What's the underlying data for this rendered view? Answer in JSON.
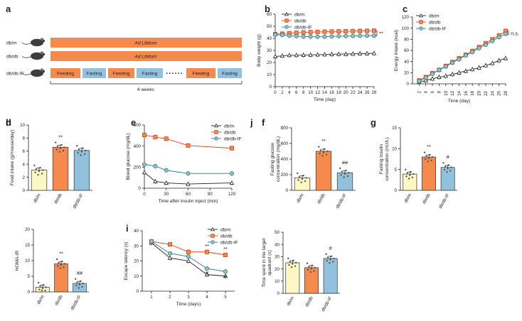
{
  "colors": {
    "dbm": "#fdf7c3",
    "dbdb": "#f58a4c",
    "dbdbif": "#92c1dd",
    "orange_bar": "#f58a4c",
    "blue_bar": "#92c1dd",
    "dbm_line": "#222222",
    "dbdb_line": "#d9441f",
    "dbdbif_line": "#2e7f6d"
  },
  "panel_a": {
    "label": "a",
    "rows": [
      {
        "group": "db/m",
        "bar_text": "Ad Libitum"
      },
      {
        "group": "db/db",
        "bar_text": "Ad Libitum"
      },
      {
        "group": "db/db-IF",
        "segments": [
          "Feeding",
          "Fasting",
          "Feeding",
          "Fasting",
          "Feeding",
          "Fasting"
        ],
        "dots": "• • • • • •"
      }
    ],
    "duration": "4 weeks",
    "mouse_icon": "mouse-icon"
  },
  "legend3": [
    "db/m",
    "db/db",
    "db/db-IF"
  ],
  "chart_data": [
    {
      "id": "b",
      "type": "line",
      "title": "",
      "xlabel": "Time (day)",
      "ylabel": "Body weight (g)",
      "x": [
        0,
        2,
        4,
        6,
        8,
        10,
        12,
        14,
        16,
        18,
        20,
        22,
        24,
        26,
        28
      ],
      "xticks": [
        "0",
        "2",
        "4",
        "6",
        "8",
        "10",
        "12",
        "14",
        "16",
        "18",
        "20",
        "22",
        "24",
        "26",
        "28"
      ],
      "ylim": [
        0,
        60
      ],
      "yticks": [
        "0",
        "10",
        "20",
        "30",
        "40",
        "50",
        "60"
      ],
      "series": [
        {
          "name": "db/m",
          "values": [
            25,
            25.5,
            26,
            26,
            26.2,
            26.3,
            26.5,
            26.6,
            26.8,
            27,
            27,
            27.2,
            27.4,
            27.5,
            27.6
          ]
        },
        {
          "name": "db/db",
          "values": [
            43.5,
            43.8,
            44.2,
            44.6,
            44.9,
            45.1,
            45.3,
            45.5,
            45.7,
            45.8,
            45.9,
            46,
            46.1,
            46.2,
            46.3
          ]
        },
        {
          "name": "db/db-IF",
          "values": [
            43,
            42.8,
            42.2,
            41.8,
            41.5,
            41.4,
            41.3,
            41.4,
            41.6,
            41.8,
            41.9,
            42,
            42.1,
            42.2,
            42.3
          ]
        }
      ],
      "annotation": "**"
    },
    {
      "id": "c",
      "type": "line",
      "title": "",
      "xlabel": "Time (day)",
      "ylabel": "Energy intake (kcal)",
      "x": [
        2,
        4,
        6,
        8,
        10,
        12,
        14,
        16,
        18,
        20,
        22,
        24,
        26,
        28
      ],
      "xticks": [
        "2",
        "4",
        "6",
        "8",
        "10",
        "12",
        "14",
        "16",
        "18",
        "20",
        "22",
        "24",
        "26",
        "28"
      ],
      "ylim": [
        0,
        120
      ],
      "yticks": [
        "0",
        "20",
        "40",
        "60",
        "80",
        "100",
        "120"
      ],
      "series": [
        {
          "name": "db/m",
          "values": [
            3,
            6,
            9,
            12,
            14,
            17,
            20,
            23,
            26,
            29,
            33,
            37,
            42,
            46
          ]
        },
        {
          "name": "db/db",
          "values": [
            6,
            12,
            19,
            25,
            32,
            39,
            46,
            52,
            59,
            66,
            73,
            80,
            87,
            95
          ]
        },
        {
          "name": "db/db-IF",
          "values": [
            5,
            11,
            18,
            25,
            31,
            38,
            44,
            51,
            57,
            64,
            70,
            77,
            84,
            90
          ]
        }
      ],
      "annotation": "n.s."
    },
    {
      "id": "d",
      "type": "bar",
      "title": "",
      "xlabel": "",
      "ylabel": "Food intake (g/mouse/day)",
      "categories": [
        "db/m",
        "db/db",
        "db/db-IF"
      ],
      "values": [
        3.1,
        6.6,
        6.1
      ],
      "ylim": [
        0,
        10
      ],
      "yticks": [
        "0",
        "2",
        "4",
        "6",
        "8",
        "10"
      ],
      "significance": [
        "",
        "**",
        ""
      ]
    },
    {
      "id": "e",
      "type": "line",
      "title": "",
      "xlabel": "Time after insulin inject (min)",
      "ylabel": "Blood glucose (mg/dL)",
      "x": [
        0,
        15,
        30,
        60,
        120
      ],
      "xticks": [
        "0",
        "30",
        "60",
        "90",
        "120"
      ],
      "xlim": [
        0,
        120
      ],
      "ylim": [
        0,
        600
      ],
      "yticks": [
        "0",
        "200",
        "400",
        "600"
      ],
      "series": [
        {
          "name": "db/m",
          "values": [
            150,
            65,
            50,
            40,
            50
          ]
        },
        {
          "name": "db/db",
          "values": [
            505,
            485,
            470,
            405,
            380
          ]
        },
        {
          "name": "db/db-IF",
          "values": [
            225,
            210,
            170,
            140,
            140
          ]
        }
      ]
    },
    {
      "id": "f",
      "type": "bar",
      "title": "",
      "xlabel": "",
      "ylabel": "Fasting glucose concentration (mg/dL)",
      "categories": [
        "db/m",
        "db/db",
        "db/db-IF"
      ],
      "values": [
        160,
        500,
        225
      ],
      "ylim": [
        0,
        800
      ],
      "yticks": [
        "0",
        "200",
        "400",
        "600",
        "800"
      ],
      "significance": [
        "",
        "**",
        "##"
      ]
    },
    {
      "id": "g",
      "type": "bar",
      "title": "",
      "xlabel": "",
      "ylabel": "Fasting insulin concentration (mU/L)",
      "categories": [
        "db/m",
        "db/db",
        "db/db-IF"
      ],
      "values": [
        3.9,
        8.0,
        5.5
      ],
      "ylim": [
        0,
        15
      ],
      "yticks": [
        "0",
        "5",
        "10",
        "15"
      ],
      "significance": [
        "",
        "**",
        "#"
      ]
    },
    {
      "id": "h",
      "type": "bar",
      "title": "",
      "xlabel": "",
      "ylabel": "HOMA-IR",
      "categories": [
        "db/m",
        "db/db",
        "db/db-IF"
      ],
      "values": [
        1.5,
        9.0,
        2.7
      ],
      "ylim": [
        0,
        20
      ],
      "yticks": [
        "0",
        "5",
        "10",
        "15",
        "20"
      ],
      "significance": [
        "",
        "**",
        "##"
      ]
    },
    {
      "id": "i",
      "type": "line",
      "title": "",
      "xlabel": "Time (days)",
      "ylabel": "Escape latency (s)",
      "x": [
        1,
        2,
        3,
        4,
        5
      ],
      "xticks": [
        "1",
        "2",
        "3",
        "4",
        "5"
      ],
      "ylim": [
        0,
        40
      ],
      "yticks": [
        "0",
        "10",
        "20",
        "30",
        "40"
      ],
      "series": [
        {
          "name": "db/m",
          "values": [
            32,
            22,
            20,
            11,
            10
          ]
        },
        {
          "name": "db/db",
          "values": [
            33,
            31,
            26,
            26,
            24
          ]
        },
        {
          "name": "db/db-IF",
          "values": [
            33,
            25,
            23,
            15,
            13
          ]
        }
      ],
      "annotations": [
        "**",
        "**",
        "#",
        "#"
      ]
    },
    {
      "id": "j",
      "type": "bar",
      "title": "",
      "xlabel": "",
      "ylabel": "Time spent in the target quadrant (s)",
      "categories": [
        "db/m",
        "db/db",
        "db/db-IF"
      ],
      "values": [
        25,
        21,
        28.5
      ],
      "ylim": [
        0,
        50
      ],
      "yticks": [
        "0",
        "10",
        "20",
        "30",
        "40",
        "50"
      ],
      "significance": [
        "",
        "",
        "#"
      ]
    }
  ]
}
